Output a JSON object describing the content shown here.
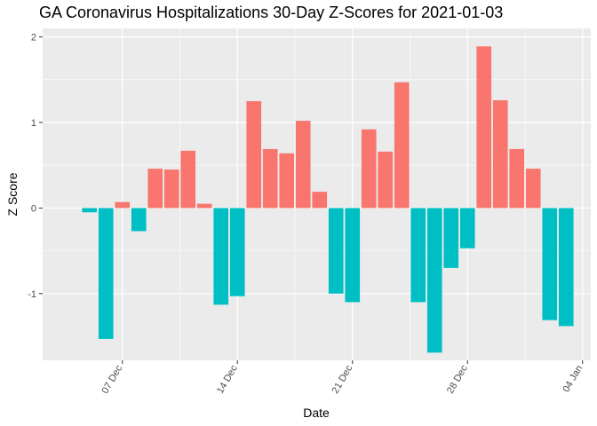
{
  "chart_data": {
    "type": "bar",
    "title": "GA Coronavirus Hospitalizations 30-Day Z-Scores for 2021-01-03",
    "xlabel": "Date",
    "ylabel": "Z Score",
    "x_axis_type": "date",
    "xlim": [
      "2020-12-02",
      "2021-01-04"
    ],
    "ylim": [
      -1.78,
      2.1
    ],
    "y_ticks": [
      -1,
      0,
      1,
      2
    ],
    "y_tick_labels": [
      "-1",
      "0",
      "1",
      "2"
    ],
    "x_ticks": [
      "2020-12-07",
      "2020-12-14",
      "2020-12-21",
      "2020-12-28",
      "2021-01-04"
    ],
    "x_tick_labels": [
      "07 Dec",
      "14 Dec",
      "21 Dec",
      "28 Dec",
      "04 Jan"
    ],
    "grid": true,
    "legend": "none",
    "colors": {
      "positive": "#F8766D",
      "negative": "#00BFC4",
      "panel": "#EBEBEB",
      "gridline": "#FFFFFF"
    },
    "x": [
      "2020-12-05",
      "2020-12-06",
      "2020-12-07",
      "2020-12-08",
      "2020-12-09",
      "2020-12-10",
      "2020-12-11",
      "2020-12-12",
      "2020-12-13",
      "2020-12-14",
      "2020-12-15",
      "2020-12-16",
      "2020-12-17",
      "2020-12-18",
      "2020-12-19",
      "2020-12-20",
      "2020-12-21",
      "2020-12-22",
      "2020-12-23",
      "2020-12-24",
      "2020-12-25",
      "2020-12-26",
      "2020-12-27",
      "2020-12-28",
      "2020-12-29",
      "2020-12-30",
      "2020-12-31",
      "2021-01-01",
      "2021-01-02",
      "2021-01-03"
    ],
    "values": [
      -0.05,
      -1.53,
      0.07,
      -0.27,
      0.46,
      0.45,
      0.67,
      0.05,
      -1.13,
      -1.03,
      1.25,
      0.69,
      0.64,
      1.02,
      0.19,
      -1.0,
      -1.1,
      0.92,
      0.66,
      1.47,
      -1.1,
      -1.69,
      -0.7,
      -0.47,
      1.89,
      1.26,
      0.69,
      0.46,
      -1.31,
      -1.38
    ]
  }
}
